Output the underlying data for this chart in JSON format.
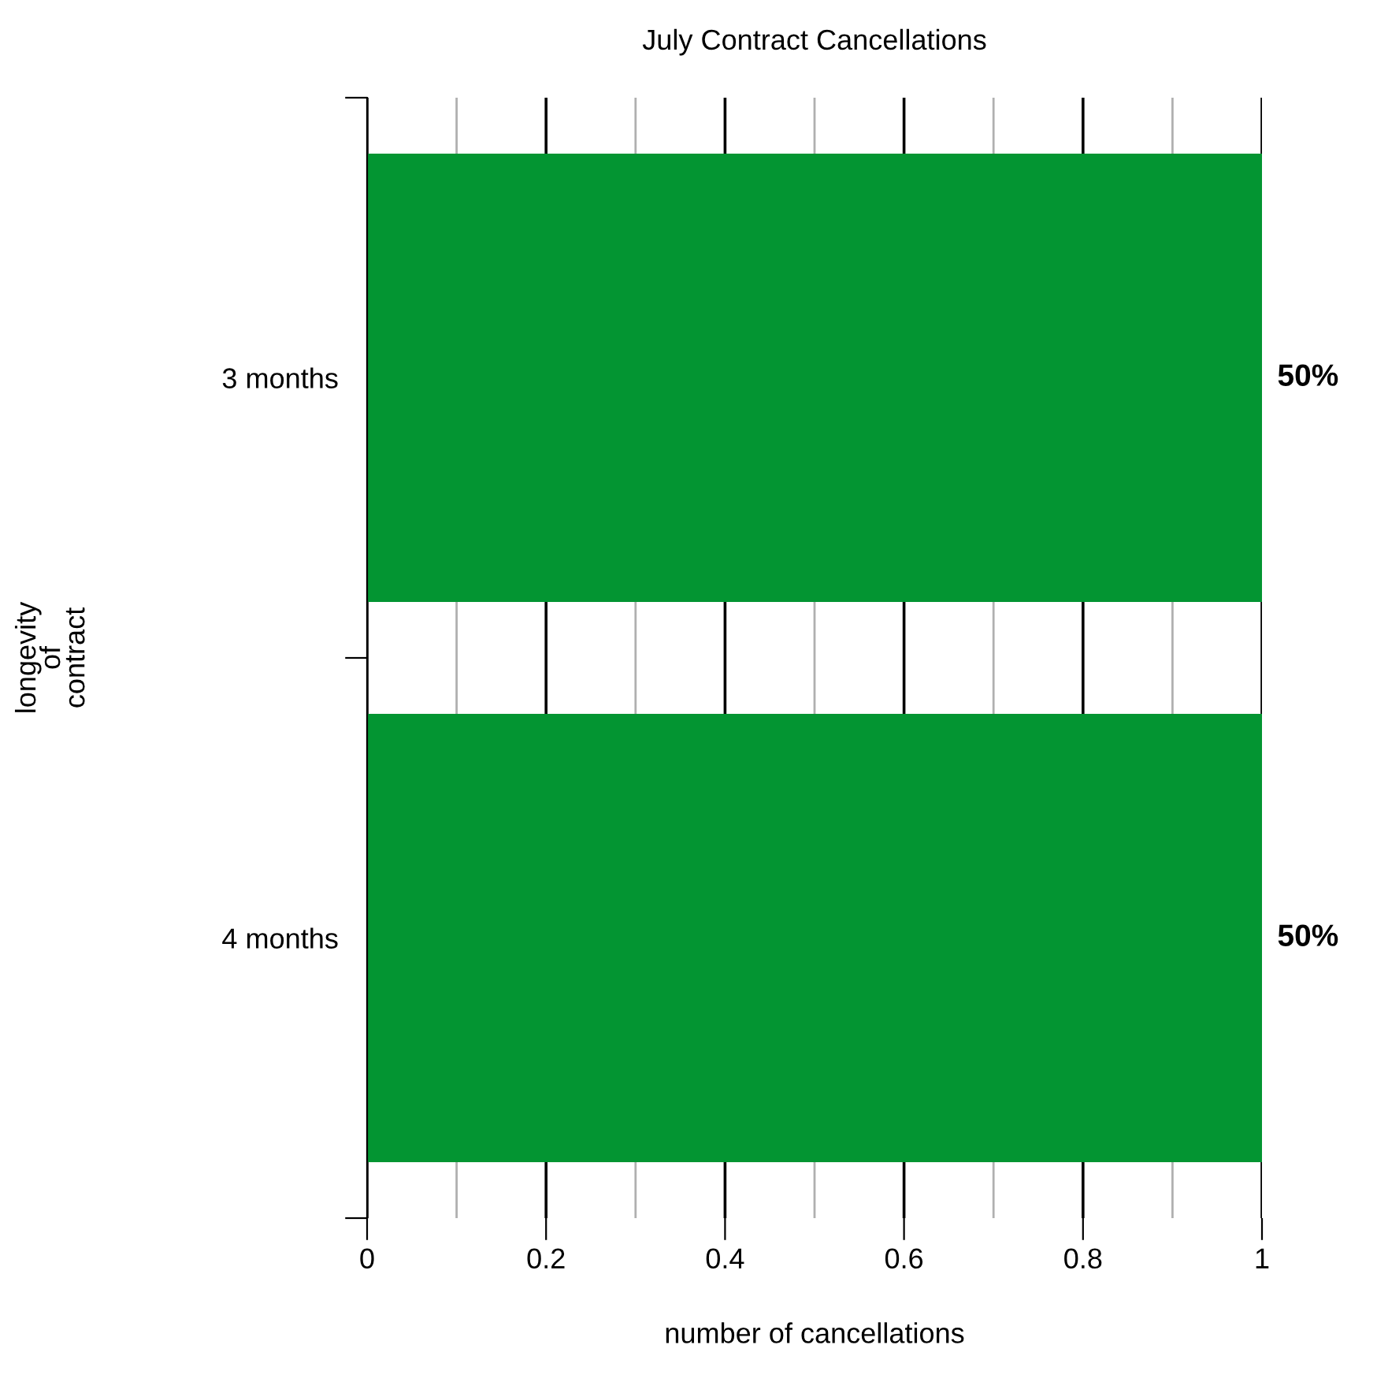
{
  "chart_data": {
    "type": "bar",
    "orientation": "horizontal",
    "title": "July Contract Cancellations",
    "xlabel": "number of cancellations",
    "ylabel": "longevity\nof\ncontract",
    "categories": [
      "3 months",
      "4 months"
    ],
    "values": [
      1,
      1
    ],
    "color": "#039532",
    "annotations": [
      {
        "text": "50%",
        "x": 1,
        "y": "3 months"
      },
      {
        "text": "50%",
        "x": 1,
        "y": "4 months"
      }
    ],
    "xlim": [
      0,
      1
    ],
    "xticks": [
      0,
      {
        "value": 0.1,
        "label": null
      },
      0.2,
      {
        "value": 0.3,
        "label": null
      },
      0.4,
      {
        "value": 0.5,
        "label": null
      },
      0.6,
      {
        "value": 0.7,
        "label": null
      },
      0.8,
      {
        "value": 0.9,
        "label": null
      },
      1
    ],
    "grid": "x",
    "legend": false
  }
}
